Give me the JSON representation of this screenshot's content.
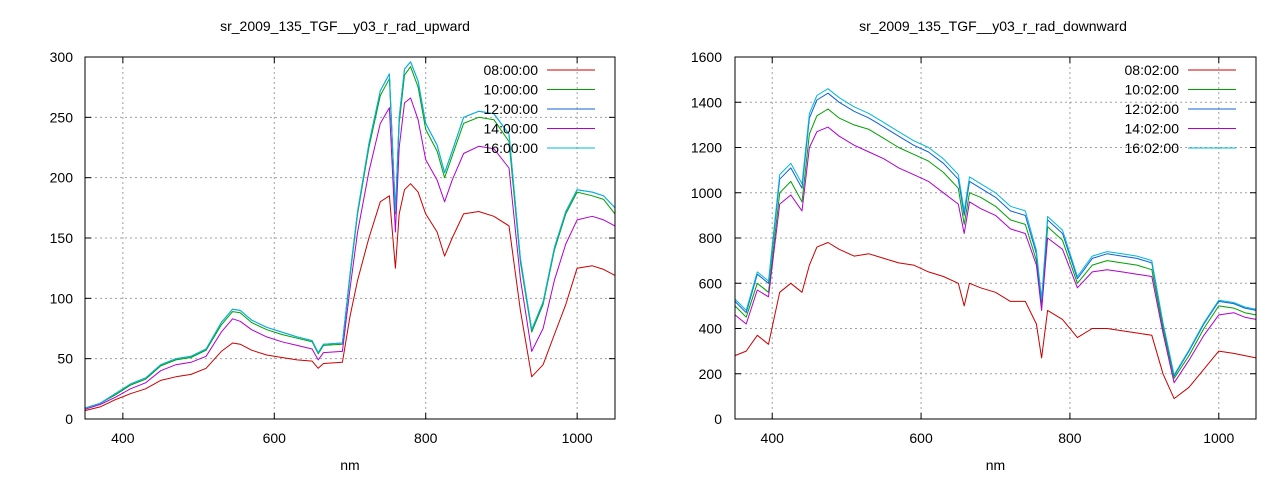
{
  "chart_data": [
    {
      "type": "line",
      "title": "sr_2009_135_TGF__y03_r_rad_upward",
      "xlabel": "nm",
      "ylabel": "",
      "xlim": [
        350,
        1050
      ],
      "ylim": [
        0,
        300
      ],
      "xticks": [
        400,
        600,
        800,
        1000
      ],
      "yticks": [
        0,
        50,
        100,
        150,
        200,
        250,
        300
      ],
      "grid": true,
      "legend_position": "top-right",
      "x": [
        350,
        370,
        390,
        410,
        430,
        450,
        470,
        490,
        510,
        530,
        545,
        555,
        570,
        590,
        610,
        630,
        650,
        658,
        665,
        690,
        700,
        710,
        725,
        740,
        752,
        760,
        765,
        772,
        780,
        790,
        800,
        815,
        825,
        835,
        850,
        870,
        890,
        910,
        925,
        940,
        955,
        970,
        985,
        1000,
        1020,
        1035,
        1050
      ],
      "series": [
        {
          "name": "08:00:00",
          "color": "#cc0000",
          "values": [
            7,
            10,
            16,
            21,
            25,
            32,
            35,
            37,
            42,
            56,
            63,
            62,
            57,
            53,
            51,
            49,
            48,
            42,
            46,
            47,
            85,
            115,
            150,
            180,
            185,
            125,
            170,
            190,
            195,
            188,
            170,
            155,
            135,
            150,
            170,
            172,
            168,
            160,
            90,
            35,
            45,
            70,
            95,
            125,
            127,
            124,
            119
          ]
        },
        {
          "name": "10:00:00",
          "color": "#00a000",
          "values": [
            9,
            13,
            20,
            28,
            33,
            44,
            49,
            51,
            57,
            78,
            89,
            88,
            80,
            74,
            70,
            67,
            64,
            54,
            61,
            62,
            118,
            170,
            225,
            268,
            282,
            170,
            245,
            285,
            292,
            275,
            240,
            222,
            200,
            218,
            245,
            250,
            248,
            230,
            130,
            72,
            95,
            140,
            170,
            188,
            185,
            182,
            170
          ]
        },
        {
          "name": "12:00:00",
          "color": "#1060d8",
          "values": [
            9,
            13,
            21,
            29,
            34,
            45,
            50,
            52,
            58,
            80,
            91,
            90,
            82,
            76,
            72,
            68,
            65,
            55,
            62,
            63,
            120,
            172,
            228,
            272,
            286,
            172,
            250,
            290,
            296,
            280,
            245,
            227,
            204,
            222,
            250,
            255,
            253,
            236,
            133,
            74,
            97,
            142,
            172,
            190,
            188,
            185,
            175
          ]
        },
        {
          "name": "14:00:00",
          "color": "#b000d0",
          "values": [
            8,
            12,
            18,
            25,
            30,
            40,
            45,
            47,
            52,
            72,
            83,
            81,
            74,
            68,
            64,
            61,
            58,
            49,
            55,
            56,
            108,
            155,
            205,
            245,
            258,
            155,
            225,
            262,
            266,
            248,
            215,
            198,
            180,
            198,
            220,
            226,
            224,
            208,
            116,
            56,
            75,
            115,
            145,
            165,
            168,
            165,
            160
          ]
        },
        {
          "name": "16:00:00",
          "color": "#00b8d8",
          "values": [
            9,
            13,
            21,
            29,
            34,
            45,
            50,
            52,
            58,
            80,
            91,
            90,
            82,
            76,
            72,
            68,
            65,
            55,
            62,
            63,
            120,
            172,
            228,
            272,
            286,
            172,
            250,
            290,
            296,
            280,
            245,
            227,
            204,
            222,
            250,
            255,
            253,
            236,
            133,
            74,
            97,
            142,
            172,
            190,
            188,
            185,
            175
          ]
        }
      ]
    },
    {
      "type": "line",
      "title": "sr_2009_135_TGF__y03_r_rad_downward",
      "xlabel": "nm",
      "ylabel": "",
      "xlim": [
        350,
        1050
      ],
      "ylim": [
        0,
        1600
      ],
      "xticks": [
        400,
        600,
        800,
        1000
      ],
      "yticks": [
        0,
        200,
        400,
        600,
        800,
        1000,
        1200,
        1400,
        1600
      ],
      "grid": true,
      "legend_position": "top-right",
      "x": [
        350,
        365,
        380,
        395,
        410,
        425,
        440,
        450,
        460,
        475,
        490,
        510,
        530,
        550,
        570,
        590,
        610,
        630,
        650,
        658,
        665,
        680,
        700,
        720,
        740,
        755,
        762,
        770,
        790,
        810,
        830,
        850,
        870,
        890,
        910,
        925,
        940,
        960,
        980,
        1000,
        1020,
        1035,
        1050
      ],
      "series": [
        {
          "name": "08:02:00",
          "color": "#cc0000",
          "values": [
            280,
            300,
            370,
            330,
            560,
            600,
            560,
            680,
            760,
            780,
            750,
            720,
            730,
            710,
            690,
            680,
            650,
            630,
            600,
            500,
            600,
            580,
            560,
            520,
            520,
            420,
            270,
            480,
            440,
            360,
            400,
            400,
            390,
            380,
            370,
            200,
            90,
            140,
            220,
            300,
            290,
            280,
            270
          ]
        },
        {
          "name": "10:02:00",
          "color": "#00a000",
          "values": [
            500,
            450,
            600,
            560,
            1000,
            1050,
            960,
            1260,
            1340,
            1370,
            1330,
            1300,
            1280,
            1240,
            1200,
            1170,
            1140,
            1090,
            1020,
            860,
            1000,
            980,
            940,
            880,
            860,
            700,
            500,
            850,
            790,
            600,
            680,
            700,
            690,
            680,
            660,
            400,
            180,
            280,
            400,
            500,
            490,
            470,
            460
          ]
        },
        {
          "name": "12:02:00",
          "color": "#1060d8",
          "values": [
            520,
            470,
            640,
            600,
            1060,
            1110,
            1020,
            1330,
            1410,
            1440,
            1400,
            1360,
            1330,
            1290,
            1250,
            1210,
            1180,
            1130,
            1060,
            900,
            1050,
            1020,
            980,
            920,
            900,
            730,
            520,
            880,
            820,
            620,
            710,
            730,
            720,
            710,
            690,
            420,
            190,
            300,
            420,
            520,
            510,
            490,
            480
          ]
        },
        {
          "name": "14:02:00",
          "color": "#b000d0",
          "values": [
            460,
            420,
            570,
            540,
            950,
            990,
            920,
            1200,
            1270,
            1290,
            1250,
            1210,
            1180,
            1150,
            1110,
            1080,
            1050,
            1000,
            950,
            820,
            960,
            930,
            900,
            840,
            820,
            680,
            480,
            800,
            750,
            580,
            650,
            660,
            650,
            640,
            630,
            380,
            160,
            260,
            370,
            460,
            470,
            450,
            440
          ]
        },
        {
          "name": "16:02:00",
          "color": "#00b8d8",
          "values": [
            530,
            480,
            650,
            610,
            1080,
            1130,
            1040,
            1350,
            1430,
            1460,
            1420,
            1380,
            1350,
            1310,
            1270,
            1230,
            1200,
            1150,
            1080,
            920,
            1070,
            1040,
            1000,
            940,
            920,
            745,
            530,
            895,
            835,
            630,
            720,
            740,
            730,
            720,
            700,
            425,
            195,
            305,
            425,
            525,
            515,
            495,
            485
          ]
        }
      ]
    }
  ]
}
